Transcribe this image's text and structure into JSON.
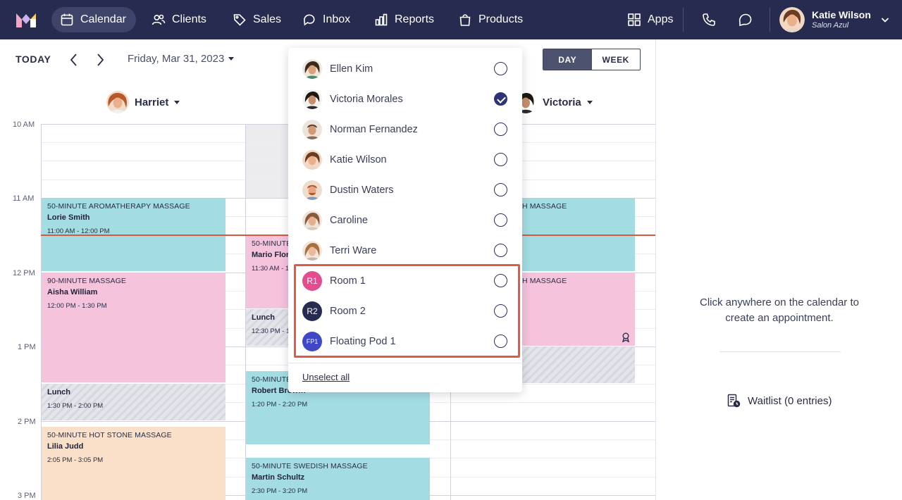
{
  "nav": {
    "items": [
      {
        "label": "Calendar",
        "icon": "calendar-icon",
        "active": true
      },
      {
        "label": "Clients",
        "icon": "clients-icon"
      },
      {
        "label": "Sales",
        "icon": "tag-icon"
      },
      {
        "label": "Inbox",
        "icon": "inbox-icon"
      },
      {
        "label": "Reports",
        "icon": "bar-chart-icon"
      },
      {
        "label": "Products",
        "icon": "shopping-bag-icon"
      }
    ],
    "apps_label": "Apps",
    "user_name": "Katie Wilson",
    "salon_name": "Salon Azul",
    "bar_color": "#262b4f"
  },
  "calendar": {
    "today_label": "TODAY",
    "date_label": "Friday, Mar 31, 2023",
    "view_day": "DAY",
    "view_week": "WEEK",
    "staff": [
      "Harriet",
      "Victoria"
    ],
    "times": [
      "10 AM",
      "11 AM",
      "12 PM",
      "1 PM",
      "2 PM",
      "3 PM"
    ]
  },
  "appointments": {
    "harriet": [
      {
        "service": "50-MINUTE AROMATHERAPY MASSAGE",
        "client": "Lorie Smith",
        "time": "11:00 AM - 12:00 PM"
      },
      {
        "service": "90-MINUTE MASSAGE",
        "client": "Aisha William",
        "time": "12:00 PM - 1:30 PM"
      },
      {
        "service": "",
        "client": "Lunch",
        "time": "1:30 PM - 2:00 PM"
      },
      {
        "service": "50-MINUTE HOT STONE MASSAGE",
        "client": "Lilia Judd",
        "time": "2:05 PM - 3:05 PM"
      }
    ],
    "middle": [
      {
        "service": "50-MINUTE",
        "client": "Mario Flore",
        "time": "11:30 AM - 1"
      },
      {
        "service": "",
        "client": "Lunch",
        "time": "12:30 PM - 1"
      },
      {
        "service": "50-MINUTE",
        "client": "Robert Brow…",
        "time": "1:20 PM - 2:20 PM"
      },
      {
        "service": "50-MINUTE SWEDISH MASSAGE",
        "client": "Martin Schultz",
        "time": "2:30 PM - 3:20 PM"
      }
    ],
    "victoria": [
      {
        "service": "H MASSAGE"
      },
      {
        "service": "H MASSAGE"
      }
    ]
  },
  "dropdown": {
    "people": [
      {
        "name": "Ellen Kim",
        "checked": false,
        "skin": "#d9a27a",
        "hair": "#3a2a1e"
      },
      {
        "name": "Victoria Morales",
        "checked": true,
        "skin": "#c68e6a",
        "hair": "#1e1712"
      },
      {
        "name": "Norman Fernandez",
        "checked": false,
        "skin": "#d49a76",
        "hair": "#5a3a25"
      },
      {
        "name": "Katie Wilson",
        "checked": false,
        "skin": "#eab08c",
        "hair": "#6a3d22"
      },
      {
        "name": "Dustin Waters",
        "checked": false,
        "skin": "#e8a480",
        "hair": "#b0562c"
      },
      {
        "name": "Caroline",
        "checked": false,
        "skin": "#e6b08f",
        "hair": "#8a5a38"
      },
      {
        "name": "Terri Ware",
        "checked": false,
        "skin": "#eab89a",
        "hair": "#a8703d"
      }
    ],
    "rooms": [
      {
        "initials": "R1",
        "name": "Room 1",
        "color": "#e34c8e",
        "checked": false
      },
      {
        "initials": "R2",
        "name": "Room 2",
        "color": "#262b4f",
        "checked": false
      },
      {
        "initials": "FP1",
        "name": "Floating Pod 1",
        "color": "#3f47c8",
        "checked": false
      }
    ],
    "unselect_label": "Unselect all"
  },
  "side_panel": {
    "hint": "Click anywhere on the calendar to create an appointment.",
    "waitlist": "Waitlist (0 entries)"
  }
}
